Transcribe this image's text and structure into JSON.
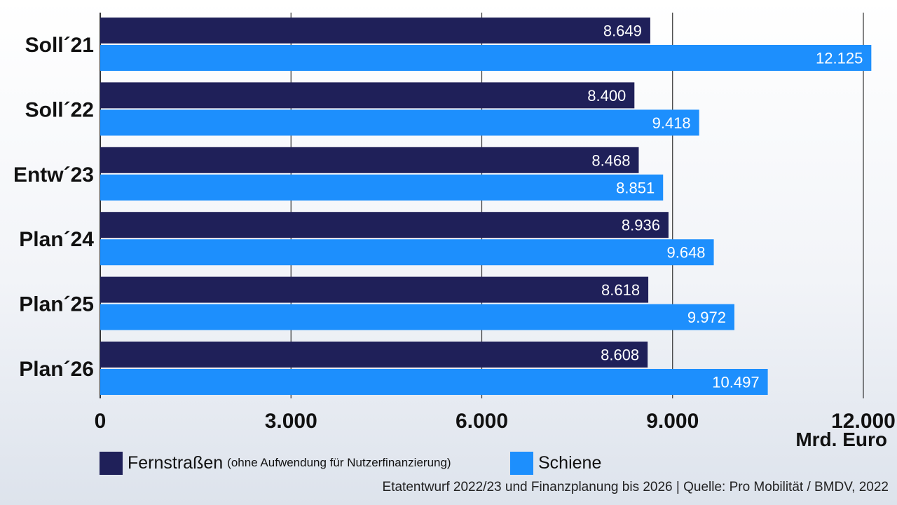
{
  "colors": {
    "fernstrassen": "#1f2059",
    "schiene": "#1d8ffd",
    "grid": "#333333",
    "text": "#111111"
  },
  "chart_data": {
    "type": "bar",
    "orientation": "horizontal",
    "title": "",
    "xlabel": "Mrd. Euro",
    "ylabel": "",
    "xlim": [
      0,
      12000
    ],
    "xticks": [
      0,
      3000,
      6000,
      9000,
      12000
    ],
    "xtick_labels": [
      "0",
      "3.000",
      "6.000",
      "9.000",
      "12.000"
    ],
    "grid": true,
    "legend_position": "bottom",
    "categories": [
      "Soll´21",
      "Soll´22",
      "Entw´23",
      "Plan´24",
      "Plan´25",
      "Plan´26"
    ],
    "series": [
      {
        "name": "Fernstraßen",
        "note": "(ohne Aufwendung für Nutzerfinanzierung)",
        "values": [
          8649,
          8400,
          8468,
          8936,
          8618,
          8608
        ],
        "labels": [
          "8.649",
          "8.400",
          "8.468",
          "8.936",
          "8.618",
          "8.608"
        ]
      },
      {
        "name": "Schiene",
        "values": [
          12125,
          9418,
          8851,
          9648,
          9972,
          10497
        ],
        "labels": [
          "12.125",
          "9.418",
          "8.851",
          "9.648",
          "9.972",
          "10.497"
        ]
      }
    ]
  },
  "source": "Etatentwurf 2022/23 und Finanzplanung bis 2026 | Quelle: Pro Mobilität / BMDV, 2022"
}
